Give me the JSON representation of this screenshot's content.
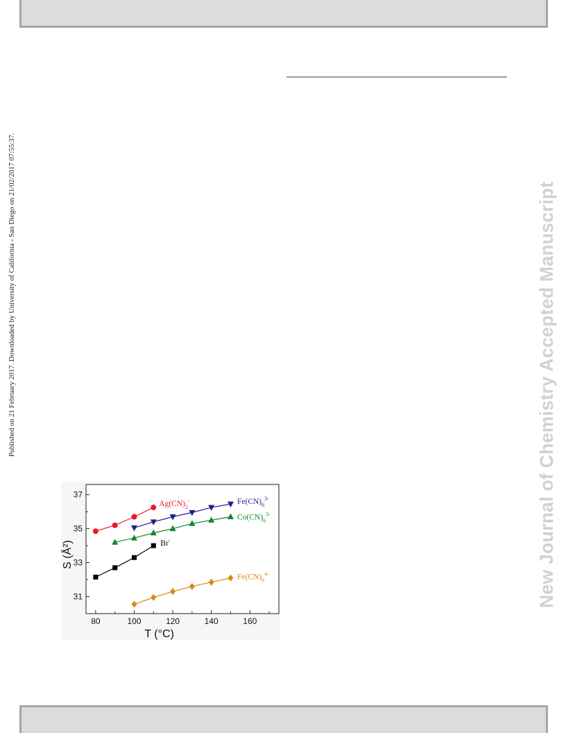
{
  "published_note": "Published on 21 February 2017. Downloaded by University of California - San Diego on 21/02/2017 07:55:37.",
  "watermark": "New Journal of Chemistry Accepted Manuscript",
  "chart_data": {
    "type": "line",
    "xlabel": "T (°C)",
    "ylabel": "S (Å²)",
    "xlim": [
      75,
      175
    ],
    "ylim": [
      30,
      37.6
    ],
    "xticks": [
      80,
      100,
      120,
      140,
      160
    ],
    "yticks": [
      31,
      33,
      35,
      37
    ],
    "grid": false,
    "series": [
      {
        "label_main": "Ag(CN)",
        "label_sub": "2",
        "label_sup": "-",
        "marker": "circle",
        "color": "#e8182e",
        "x": [
          80,
          90,
          100,
          110
        ],
        "y": [
          34.85,
          35.2,
          35.7,
          36.25
        ]
      },
      {
        "label_main": "Fe(CN)",
        "label_sub": "6",
        "label_sup": "3-",
        "marker": "triangle-down",
        "color": "#1f1f8c",
        "x": [
          100,
          110,
          120,
          130,
          140,
          150
        ],
        "y": [
          35.05,
          35.4,
          35.7,
          35.95,
          36.25,
          36.45
        ]
      },
      {
        "label_main": "Co(CN)",
        "label_sub": "6",
        "label_sup": "3-",
        "marker": "triangle-up",
        "color": "#0e8a2e",
        "x": [
          90,
          100,
          110,
          120,
          130,
          140,
          150
        ],
        "y": [
          34.2,
          34.45,
          34.75,
          35.0,
          35.3,
          35.5,
          35.7
        ]
      },
      {
        "label_main": "Br",
        "label_sub": "",
        "label_sup": "-",
        "marker": "square",
        "color": "#000000",
        "x": [
          80,
          90,
          100,
          110
        ],
        "y": [
          32.15,
          32.7,
          33.3,
          34.0
        ]
      },
      {
        "label_main": "Fe(CN)",
        "label_sub": "6",
        "label_sup": "4-",
        "marker": "diamond",
        "color": "#d98a10",
        "x": [
          100,
          110,
          120,
          130,
          140,
          150
        ],
        "y": [
          30.55,
          30.95,
          31.3,
          31.6,
          31.85,
          32.1
        ]
      }
    ]
  }
}
